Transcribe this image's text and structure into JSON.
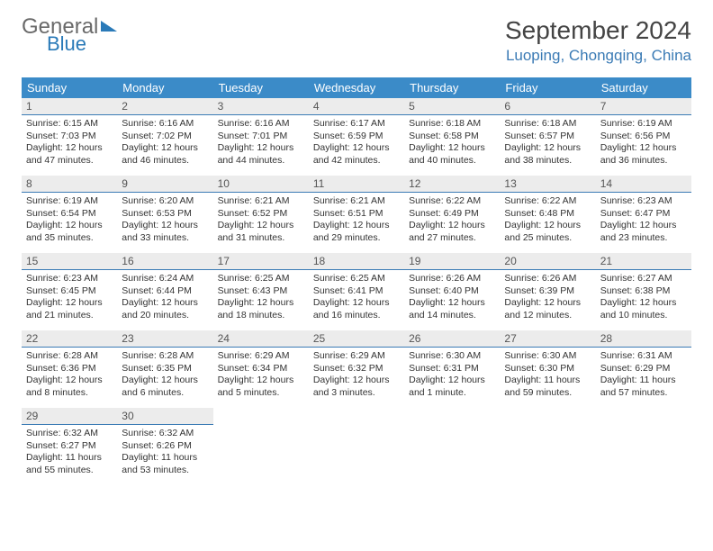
{
  "logo": {
    "text1": "General",
    "text2": "Blue"
  },
  "title": "September 2024",
  "location": "Luoping, Chongqing, China",
  "colors": {
    "header_bg": "#3b8bc8",
    "accent": "#3b7bb5",
    "daynum_bg": "#ececec",
    "text": "#333333"
  },
  "weekdays": [
    "Sunday",
    "Monday",
    "Tuesday",
    "Wednesday",
    "Thursday",
    "Friday",
    "Saturday"
  ],
  "calendar": {
    "type": "table",
    "columns": 7,
    "rows": 5,
    "first_day_index": 0,
    "days": [
      {
        "n": 1,
        "sunrise": "6:15 AM",
        "sunset": "7:03 PM",
        "daylight": "12 hours and 47 minutes."
      },
      {
        "n": 2,
        "sunrise": "6:16 AM",
        "sunset": "7:02 PM",
        "daylight": "12 hours and 46 minutes."
      },
      {
        "n": 3,
        "sunrise": "6:16 AM",
        "sunset": "7:01 PM",
        "daylight": "12 hours and 44 minutes."
      },
      {
        "n": 4,
        "sunrise": "6:17 AM",
        "sunset": "6:59 PM",
        "daylight": "12 hours and 42 minutes."
      },
      {
        "n": 5,
        "sunrise": "6:18 AM",
        "sunset": "6:58 PM",
        "daylight": "12 hours and 40 minutes."
      },
      {
        "n": 6,
        "sunrise": "6:18 AM",
        "sunset": "6:57 PM",
        "daylight": "12 hours and 38 minutes."
      },
      {
        "n": 7,
        "sunrise": "6:19 AM",
        "sunset": "6:56 PM",
        "daylight": "12 hours and 36 minutes."
      },
      {
        "n": 8,
        "sunrise": "6:19 AM",
        "sunset": "6:54 PM",
        "daylight": "12 hours and 35 minutes."
      },
      {
        "n": 9,
        "sunrise": "6:20 AM",
        "sunset": "6:53 PM",
        "daylight": "12 hours and 33 minutes."
      },
      {
        "n": 10,
        "sunrise": "6:21 AM",
        "sunset": "6:52 PM",
        "daylight": "12 hours and 31 minutes."
      },
      {
        "n": 11,
        "sunrise": "6:21 AM",
        "sunset": "6:51 PM",
        "daylight": "12 hours and 29 minutes."
      },
      {
        "n": 12,
        "sunrise": "6:22 AM",
        "sunset": "6:49 PM",
        "daylight": "12 hours and 27 minutes."
      },
      {
        "n": 13,
        "sunrise": "6:22 AM",
        "sunset": "6:48 PM",
        "daylight": "12 hours and 25 minutes."
      },
      {
        "n": 14,
        "sunrise": "6:23 AM",
        "sunset": "6:47 PM",
        "daylight": "12 hours and 23 minutes."
      },
      {
        "n": 15,
        "sunrise": "6:23 AM",
        "sunset": "6:45 PM",
        "daylight": "12 hours and 21 minutes."
      },
      {
        "n": 16,
        "sunrise": "6:24 AM",
        "sunset": "6:44 PM",
        "daylight": "12 hours and 20 minutes."
      },
      {
        "n": 17,
        "sunrise": "6:25 AM",
        "sunset": "6:43 PM",
        "daylight": "12 hours and 18 minutes."
      },
      {
        "n": 18,
        "sunrise": "6:25 AM",
        "sunset": "6:41 PM",
        "daylight": "12 hours and 16 minutes."
      },
      {
        "n": 19,
        "sunrise": "6:26 AM",
        "sunset": "6:40 PM",
        "daylight": "12 hours and 14 minutes."
      },
      {
        "n": 20,
        "sunrise": "6:26 AM",
        "sunset": "6:39 PM",
        "daylight": "12 hours and 12 minutes."
      },
      {
        "n": 21,
        "sunrise": "6:27 AM",
        "sunset": "6:38 PM",
        "daylight": "12 hours and 10 minutes."
      },
      {
        "n": 22,
        "sunrise": "6:28 AM",
        "sunset": "6:36 PM",
        "daylight": "12 hours and 8 minutes."
      },
      {
        "n": 23,
        "sunrise": "6:28 AM",
        "sunset": "6:35 PM",
        "daylight": "12 hours and 6 minutes."
      },
      {
        "n": 24,
        "sunrise": "6:29 AM",
        "sunset": "6:34 PM",
        "daylight": "12 hours and 5 minutes."
      },
      {
        "n": 25,
        "sunrise": "6:29 AM",
        "sunset": "6:32 PM",
        "daylight": "12 hours and 3 minutes."
      },
      {
        "n": 26,
        "sunrise": "6:30 AM",
        "sunset": "6:31 PM",
        "daylight": "12 hours and 1 minute."
      },
      {
        "n": 27,
        "sunrise": "6:30 AM",
        "sunset": "6:30 PM",
        "daylight": "11 hours and 59 minutes."
      },
      {
        "n": 28,
        "sunrise": "6:31 AM",
        "sunset": "6:29 PM",
        "daylight": "11 hours and 57 minutes."
      },
      {
        "n": 29,
        "sunrise": "6:32 AM",
        "sunset": "6:27 PM",
        "daylight": "11 hours and 55 minutes."
      },
      {
        "n": 30,
        "sunrise": "6:32 AM",
        "sunset": "6:26 PM",
        "daylight": "11 hours and 53 minutes."
      }
    ]
  },
  "labels": {
    "sunrise": "Sunrise:",
    "sunset": "Sunset:",
    "daylight": "Daylight:"
  }
}
